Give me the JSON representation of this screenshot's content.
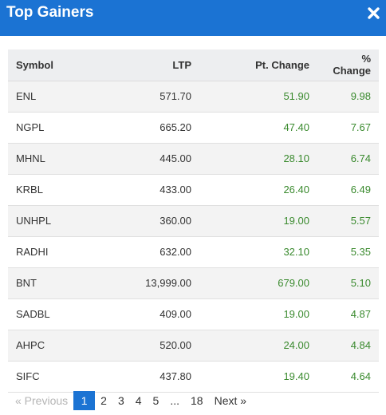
{
  "modal": {
    "title": "Top Gainers",
    "close_icon": "close-icon"
  },
  "table": {
    "headers": {
      "symbol": "Symbol",
      "ltp": "LTP",
      "pt_change": "Pt. Change",
      "pct_change": "% Change"
    },
    "rows": [
      {
        "symbol": "ENL",
        "ltp": "571.70",
        "pt_change": "51.90",
        "pct_change": "9.98"
      },
      {
        "symbol": "NGPL",
        "ltp": "665.20",
        "pt_change": "47.40",
        "pct_change": "7.67"
      },
      {
        "symbol": "MHNL",
        "ltp": "445.00",
        "pt_change": "28.10",
        "pct_change": "6.74"
      },
      {
        "symbol": "KRBL",
        "ltp": "433.00",
        "pt_change": "26.40",
        "pct_change": "6.49"
      },
      {
        "symbol": "UNHPL",
        "ltp": "360.00",
        "pt_change": "19.00",
        "pct_change": "5.57"
      },
      {
        "symbol": "RADHI",
        "ltp": "632.00",
        "pt_change": "32.10",
        "pct_change": "5.35"
      },
      {
        "symbol": "BNT",
        "ltp": "13,999.00",
        "pt_change": "679.00",
        "pct_change": "5.10"
      },
      {
        "symbol": "SADBL",
        "ltp": "409.00",
        "pt_change": "19.00",
        "pct_change": "4.87"
      },
      {
        "symbol": "AHPC",
        "ltp": "520.00",
        "pt_change": "24.00",
        "pct_change": "4.84"
      },
      {
        "symbol": "SIFC",
        "ltp": "437.80",
        "pt_change": "19.40",
        "pct_change": "4.64"
      }
    ]
  },
  "pagination": {
    "previous": "« Previous",
    "pages": [
      "1",
      "2",
      "3",
      "4",
      "5"
    ],
    "ellipsis": "...",
    "last_page": "18",
    "next": "Next »",
    "current": "1"
  },
  "colors": {
    "header_bg": "#1b73d3",
    "positive": "#3a8a2e",
    "active_page": "#1b73d3"
  }
}
